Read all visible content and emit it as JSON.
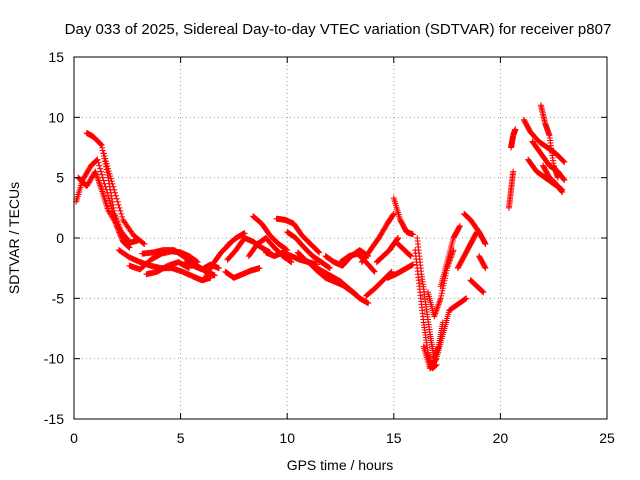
{
  "chart_data": {
    "type": "scatter",
    "title": "Day 033 of 2025, Sidereal Day-to-day VTEC variation (SDTVAR) for receiver p807",
    "xlabel": "GPS time / hours",
    "ylabel": "SDTVAR / TECUs",
    "xlim": [
      0,
      25
    ],
    "ylim": [
      -15,
      15
    ],
    "xticks": [
      0,
      5,
      10,
      15,
      20,
      25
    ],
    "yticks": [
      -15,
      -10,
      -5,
      0,
      5,
      10,
      15
    ],
    "xtick_labels": [
      "0",
      "5",
      "10",
      "15",
      "20",
      "25"
    ],
    "ytick_labels": [
      "-15",
      "-10",
      "-5",
      "0",
      "5",
      "10",
      "15"
    ],
    "grid": true,
    "marker": "plus",
    "color": "#ff0000",
    "series": [
      {
        "name": "s1",
        "x": [
          0.1,
          0.4,
          0.8,
          1.1,
          1.6,
          2.0,
          2.3,
          2.6
        ],
        "y": [
          3.0,
          4.8,
          6.0,
          6.5,
          3.5,
          1.0,
          -0.3,
          -0.8
        ]
      },
      {
        "name": "s2",
        "x": [
          0.2,
          0.6,
          1.0,
          1.3,
          1.6,
          2.1,
          2.6,
          3.0
        ],
        "y": [
          5.0,
          4.3,
          5.5,
          4.0,
          2.3,
          0.8,
          -0.4,
          -0.2
        ]
      },
      {
        "name": "s3",
        "x": [
          0.6,
          0.9,
          1.3,
          1.6,
          1.9,
          2.2,
          2.6
        ],
        "y": [
          8.7,
          8.4,
          7.7,
          5.0,
          2.0,
          0.5,
          -0.3
        ]
      },
      {
        "name": "s4",
        "x": [
          1.4,
          1.8,
          2.3,
          2.8,
          3.3
        ],
        "y": [
          7.0,
          4.5,
          1.5,
          0.2,
          -0.5
        ]
      },
      {
        "name": "s5",
        "x": [
          2.1,
          2.6,
          3.1,
          3.6,
          4.1,
          4.6,
          5.1,
          5.6,
          6.0,
          6.4
        ],
        "y": [
          -1.0,
          -1.6,
          -2.0,
          -2.3,
          -2.5,
          -2.5,
          -2.8,
          -3.2,
          -3.5,
          -3.3
        ]
      },
      {
        "name": "s6",
        "x": [
          2.6,
          3.1,
          3.6,
          4.1,
          4.6,
          5.0,
          5.4,
          5.8
        ],
        "y": [
          -2.3,
          -2.6,
          -1.8,
          -1.3,
          -1.1,
          -1.2,
          -1.5,
          -2.0
        ]
      },
      {
        "name": "s7",
        "x": [
          3.2,
          3.7,
          4.2,
          4.7,
          5.2,
          5.7,
          6.2,
          6.6
        ],
        "y": [
          -1.3,
          -1.2,
          -1.0,
          -1.0,
          -1.6,
          -2.2,
          -2.8,
          -3.1
        ]
      },
      {
        "name": "s8",
        "x": [
          3.4,
          3.9,
          4.4,
          4.9,
          5.4
        ],
        "y": [
          -3.0,
          -2.8,
          -2.3,
          -2.0,
          -2.5
        ]
      },
      {
        "name": "s9",
        "x": [
          5.2,
          5.6,
          6.0,
          6.4,
          6.8
        ],
        "y": [
          -2.0,
          -2.3,
          -2.6,
          -2.2,
          -2.5
        ]
      },
      {
        "name": "s10",
        "x": [
          6.1,
          6.5,
          6.9,
          7.3
        ],
        "y": [
          -3.5,
          -2.2,
          -1.2,
          -0.5
        ]
      },
      {
        "name": "s11",
        "x": [
          7.2,
          7.6,
          8.0,
          8.4,
          8.8,
          9.2
        ],
        "y": [
          -1.8,
          -1.0,
          0.0,
          -0.3,
          -0.8,
          -1.2
        ]
      },
      {
        "name": "s12",
        "x": [
          7.1,
          7.5,
          7.9,
          8.3,
          8.7
        ],
        "y": [
          -2.8,
          -3.3,
          -3.0,
          -2.7,
          -2.5
        ]
      },
      {
        "name": "s13",
        "x": [
          7.2,
          7.6,
          8.0
        ],
        "y": [
          -0.6,
          0.0,
          0.4
        ]
      },
      {
        "name": "s14",
        "x": [
          8.2,
          8.6,
          9.0,
          9.4,
          9.8,
          10.2
        ],
        "y": [
          -1.5,
          -0.5,
          0.0,
          -0.8,
          -1.5,
          -2.0
        ]
      },
      {
        "name": "s15",
        "x": [
          8.4,
          8.8,
          9.2,
          9.6,
          10.0
        ],
        "y": [
          1.8,
          1.2,
          0.2,
          -0.5,
          -1.0
        ]
      },
      {
        "name": "s16",
        "x": [
          9.0,
          9.4,
          9.8,
          10.2,
          10.6,
          11.0,
          11.4
        ],
        "y": [
          -1.2,
          -1.5,
          -1.2,
          -1.5,
          -1.8,
          -2.0,
          -2.2
        ]
      },
      {
        "name": "s17",
        "x": [
          9.5,
          9.9,
          10.3,
          10.7,
          11.1,
          11.5
        ],
        "y": [
          1.6,
          1.5,
          1.2,
          0.2,
          -0.5,
          -1.2
        ]
      },
      {
        "name": "s18",
        "x": [
          10.0,
          10.4,
          10.8,
          11.2,
          11.6,
          12.0
        ],
        "y": [
          0.5,
          0.0,
          -0.8,
          -1.5,
          -2.0,
          -2.5
        ]
      },
      {
        "name": "s19",
        "x": [
          10.5,
          10.9,
          11.3,
          11.7,
          12.1,
          12.5,
          12.9,
          13.3
        ],
        "y": [
          -1.2,
          -1.9,
          -2.4,
          -2.8,
          -3.2,
          -3.6,
          -4.2,
          -4.8
        ]
      },
      {
        "name": "s20",
        "x": [
          11.0,
          11.4,
          11.8,
          12.2,
          12.6,
          13.0,
          13.4,
          13.8
        ],
        "y": [
          -2.0,
          -2.7,
          -3.3,
          -3.6,
          -3.9,
          -4.4,
          -5.0,
          -5.4
        ]
      },
      {
        "name": "s21",
        "x": [
          11.8,
          12.2,
          12.6,
          13.0,
          13.4,
          13.8
        ],
        "y": [
          -1.5,
          -2.0,
          -2.3,
          -1.5,
          -1.0,
          -1.5
        ]
      },
      {
        "name": "s22",
        "x": [
          12.5,
          12.9,
          13.3,
          13.7,
          14.1
        ],
        "y": [
          -2.0,
          -1.5,
          -1.3,
          -2.0,
          -2.8
        ]
      },
      {
        "name": "s23",
        "x": [
          13.5,
          13.9,
          14.3,
          14.7,
          15.0
        ],
        "y": [
          -2.0,
          -1.0,
          0.0,
          1.2,
          2.0
        ]
      },
      {
        "name": "s24",
        "x": [
          13.7,
          14.1,
          14.5,
          14.9
        ],
        "y": [
          -4.8,
          -4.2,
          -3.5,
          -2.8
        ]
      },
      {
        "name": "s25",
        "x": [
          14.2,
          14.5,
          14.8,
          15.0,
          15.2
        ],
        "y": [
          -2.0,
          -1.5,
          -1.0,
          -0.5,
          0.0
        ]
      },
      {
        "name": "s26",
        "x": [
          15.0,
          15.3,
          15.6,
          15.9
        ],
        "y": [
          3.3,
          1.5,
          0.5,
          0.3
        ]
      },
      {
        "name": "s27",
        "x": [
          14.7,
          15.1,
          15.5,
          15.9
        ],
        "y": [
          -3.3,
          -3.0,
          -2.6,
          -2.2
        ]
      },
      {
        "name": "s28",
        "x": [
          15.2,
          15.5,
          15.8
        ],
        "y": [
          -0.5,
          -1.0,
          -1.5
        ]
      },
      {
        "name": "s29",
        "x": [
          16.0,
          16.2,
          16.4,
          16.6,
          16.8,
          17.0
        ],
        "y": [
          -1.0,
          -4.0,
          -7.0,
          -9.5,
          -10.8,
          -10.5
        ]
      },
      {
        "name": "s30",
        "x": [
          16.1,
          16.3,
          16.5,
          16.7,
          16.9,
          17.1,
          17.3
        ],
        "y": [
          0.0,
          -3.0,
          -5.5,
          -8.0,
          -10.0,
          -9.0,
          -7.0
        ]
      },
      {
        "name": "s31",
        "x": [
          16.4,
          16.7,
          17.0,
          17.3,
          17.6,
          18.0,
          18.4
        ],
        "y": [
          -9.0,
          -10.8,
          -10.0,
          -8.0,
          -6.0,
          -5.5,
          -5.0
        ]
      },
      {
        "name": "s32",
        "x": [
          16.6,
          16.9,
          17.2,
          17.5,
          17.8
        ],
        "y": [
          -4.5,
          -6.5,
          -5.0,
          -2.5,
          -1.0
        ]
      },
      {
        "name": "s33",
        "x": [
          17.2,
          17.5,
          17.8,
          18.1
        ],
        "y": [
          -4.0,
          -2.0,
          0.0,
          1.0
        ]
      },
      {
        "name": "s34",
        "x": [
          18.0,
          18.3,
          18.6,
          18.9
        ],
        "y": [
          -2.5,
          -1.5,
          -0.5,
          0.5
        ]
      },
      {
        "name": "s35",
        "x": [
          18.3,
          18.6,
          19.0,
          19.3
        ],
        "y": [
          2.0,
          1.5,
          0.5,
          -0.5
        ]
      },
      {
        "name": "s36",
        "x": [
          18.6,
          18.9,
          19.2
        ],
        "y": [
          -3.5,
          -4.0,
          -4.5
        ]
      },
      {
        "name": "s37",
        "x": [
          19.0,
          19.3
        ],
        "y": [
          -1.5,
          -2.5
        ]
      },
      {
        "name": "s38",
        "x": [
          20.4,
          20.5,
          20.6
        ],
        "y": [
          2.5,
          4.0,
          5.5
        ]
      },
      {
        "name": "s39",
        "x": [
          20.5,
          20.6,
          20.7
        ],
        "y": [
          7.5,
          8.5,
          9.0
        ]
      },
      {
        "name": "s40",
        "x": [
          21.1,
          21.4,
          21.8,
          22.2,
          22.6,
          23.0
        ],
        "y": [
          9.8,
          8.8,
          8.0,
          7.5,
          7.0,
          6.3
        ]
      },
      {
        "name": "s41",
        "x": [
          21.3,
          21.7,
          22.1,
          22.5,
          22.9
        ],
        "y": [
          6.5,
          5.5,
          5.0,
          4.5,
          4.0
        ]
      },
      {
        "name": "s42",
        "x": [
          21.5,
          21.9,
          22.3,
          22.7,
          23.0
        ],
        "y": [
          8.0,
          7.0,
          6.0,
          5.5,
          4.8
        ]
      },
      {
        "name": "s43",
        "x": [
          21.9,
          22.1,
          22.3,
          22.5,
          22.7
        ],
        "y": [
          11.0,
          9.5,
          8.5,
          6.0,
          5.0
        ]
      },
      {
        "name": "s44",
        "x": [
          22.0,
          22.3,
          22.6,
          22.9
        ],
        "y": [
          6.0,
          5.0,
          4.5,
          3.8
        ]
      }
    ]
  }
}
